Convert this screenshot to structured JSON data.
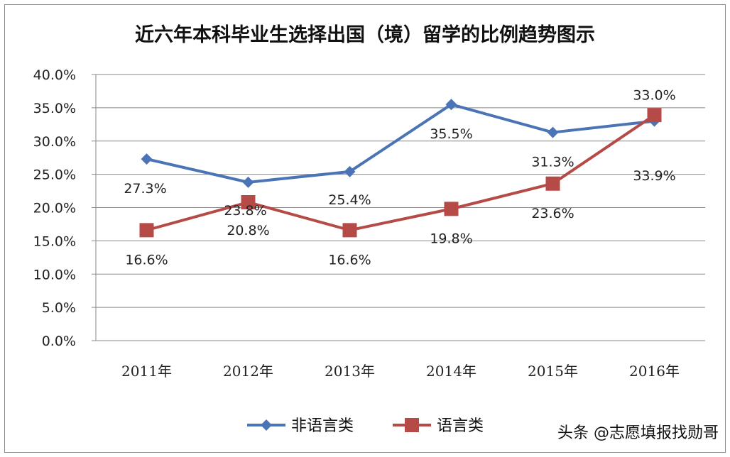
{
  "chart_data": {
    "type": "line",
    "title": "近六年本科毕业生选择出国（境）留学的比例趋势图示",
    "categories": [
      "2011年",
      "2012年",
      "2013年",
      "2014年",
      "2015年",
      "2016年"
    ],
    "ylim": [
      0,
      40
    ],
    "yticks": [
      "0.0%",
      "5.0%",
      "10.0%",
      "15.0%",
      "20.0%",
      "25.0%",
      "30.0%",
      "35.0%",
      "40.0%"
    ],
    "grid": true,
    "legend_position": "bottom",
    "series": [
      {
        "name": "非语言类",
        "color": "#4a74b5",
        "marker": "diamond",
        "values": [
          27.3,
          23.8,
          25.4,
          35.5,
          31.3,
          33.0
        ],
        "labels": [
          "27.3%",
          "23.8%",
          "25.4%",
          "35.5%",
          "31.3%",
          "33.0%"
        ]
      },
      {
        "name": "语言类",
        "color": "#b54a47",
        "marker": "square",
        "values": [
          16.6,
          20.8,
          16.6,
          19.8,
          23.6,
          33.9
        ],
        "labels": [
          "16.6%",
          "20.8%",
          "16.6%",
          "19.8%",
          "23.6%",
          "33.9%"
        ]
      }
    ]
  },
  "watermark": "头条 @志愿填报找勋哥"
}
